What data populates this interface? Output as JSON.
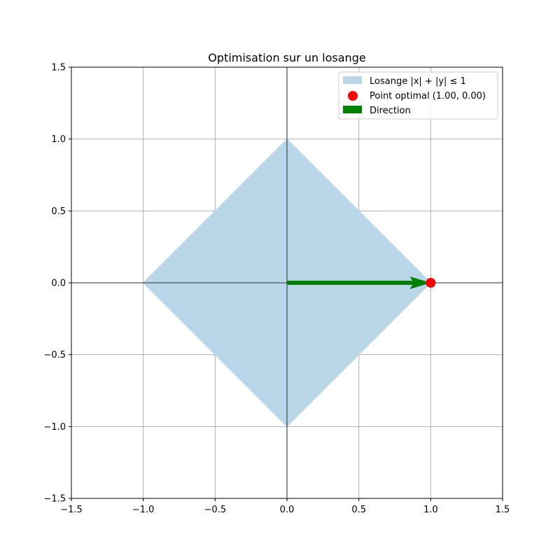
{
  "chart_data": {
    "type": "area",
    "title": "Optimisation sur un losange",
    "xlabel": "",
    "ylabel": "",
    "xlim": [
      -1.5,
      1.5
    ],
    "ylim": [
      -1.5,
      1.5
    ],
    "x_ticks": [
      -1.5,
      -1.0,
      -0.5,
      0.0,
      0.5,
      1.0,
      1.5
    ],
    "y_ticks": [
      -1.5,
      -1.0,
      -0.5,
      0.0,
      0.5,
      1.0,
      1.5
    ],
    "x_tick_labels": [
      "−1.5",
      "−1.0",
      "−0.5",
      "0.0",
      "0.5",
      "1.0",
      "1.5"
    ],
    "y_tick_labels": [
      "−1.5",
      "−1.0",
      "−0.5",
      "0.0",
      "0.5",
      "1.0",
      "1.5"
    ],
    "grid": true,
    "axes_lines_at_zero": true,
    "legend_position": "top-right",
    "region": {
      "name": "Losange |x| + |y| ≤ 1",
      "color": "#bad6e9",
      "vertices": [
        [
          1.0,
          0.0
        ],
        [
          0.0,
          1.0
        ],
        [
          -1.0,
          0.0
        ],
        [
          0.0,
          -1.0
        ]
      ]
    },
    "point": {
      "name": "Point optimal (1.00, 0.00)",
      "x": 1.0,
      "y": 0.0,
      "color": "#ff0000"
    },
    "arrow": {
      "name": "Direction",
      "from": [
        0.0,
        0.0
      ],
      "to": [
        1.0,
        0.0
      ],
      "color": "#008000"
    }
  }
}
